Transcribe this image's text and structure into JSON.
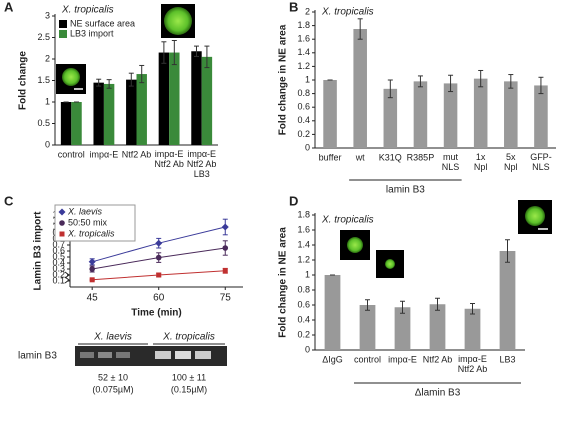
{
  "chart_data": [
    {
      "type": "bar",
      "label": "A",
      "title": "X. tropicalis",
      "ylabel": "Fold change",
      "categories": [
        "control",
        "impα-E",
        "Ntf2 Ab",
        "impα-E\nNtf2 Ab",
        "impα-E\nNtf2 Ab\nLB3"
      ],
      "series": [
        {
          "name": "NE surface area",
          "color": "#000000",
          "values": [
            1.0,
            1.45,
            1.52,
            2.15,
            2.18
          ],
          "errors": [
            0,
            0.08,
            0.15,
            0.25,
            0.12
          ]
        },
        {
          "name": "LB3 import",
          "color": "#3a8a3a",
          "values": [
            1.0,
            1.42,
            1.65,
            2.15,
            2.05
          ],
          "errors": [
            0,
            0.1,
            0.2,
            0.28,
            0.25
          ]
        }
      ],
      "ylim": [
        0,
        3
      ],
      "yticks": [
        0,
        0.5,
        1,
        1.5,
        2,
        2.5,
        3
      ]
    },
    {
      "type": "bar",
      "label": "B",
      "title": "X. tropicalis",
      "ylabel": "Fold change in NE area",
      "categories": [
        "buffer",
        "wt",
        "K31Q",
        "R385P",
        "mut\nNLS",
        "1x\nNpl",
        "5x\nNpl",
        "GFP-\nNLS"
      ],
      "series": [
        {
          "color": "#999999",
          "values": [
            1.0,
            1.75,
            0.87,
            0.98,
            0.95,
            1.02,
            0.98,
            0.92
          ],
          "errors": [
            0,
            0.15,
            0.13,
            0.08,
            0.12,
            0.12,
            0.1,
            0.12
          ]
        }
      ],
      "group_label": "lamin B3",
      "ylim": [
        0,
        2
      ],
      "yticks": [
        0,
        0.2,
        0.4,
        0.6,
        0.8,
        1,
        1.2,
        1.4,
        1.6,
        1.8,
        2
      ]
    },
    {
      "type": "line",
      "label": "C",
      "ylabel": "Lamin B3 import",
      "xlabel": "Time (min)",
      "x": [
        45,
        60,
        75
      ],
      "series": [
        {
          "name": "X. laevis",
          "color": "#3b3b9a",
          "marker": "diamond",
          "values": [
            0.42,
            0.73,
            1.0
          ],
          "errors": [
            0.05,
            0.08,
            0.13
          ]
        },
        {
          "name": "50:50 mix",
          "color": "#4a2a5a",
          "marker": "circle",
          "values": [
            0.3,
            0.49,
            0.65
          ],
          "errors": [
            0.05,
            0.08,
            0.12
          ]
        },
        {
          "name": "X. tropicalis",
          "color": "#c03030",
          "marker": "square",
          "values": [
            0.12,
            0.2,
            0.27
          ],
          "errors": [
            0.01,
            0.03,
            0.04
          ]
        }
      ],
      "xlim": [
        40,
        79
      ],
      "xticks": [
        45,
        60,
        75
      ],
      "ylim": [
        0,
        1.2
      ],
      "yticks": [
        0.1,
        0.2,
        0.3,
        0.4,
        0.5,
        0.6,
        0.7,
        0.8,
        0.9,
        {
          "value": 1.0,
          "label": "1.0"
        },
        1.1,
        1.2
      ]
    },
    {
      "type": "bar",
      "label": "D",
      "title": "X. tropicalis",
      "ylabel": "Fold change in NE area",
      "categories": [
        "ΔIgG",
        "control",
        "impα-E",
        "Ntf2 Ab",
        "impα-E\nNtf2 Ab",
        "LB3"
      ],
      "series": [
        {
          "color": "#999999",
          "values": [
            1.0,
            0.6,
            0.57,
            0.61,
            0.55,
            1.32
          ],
          "errors": [
            0,
            0.07,
            0.08,
            0.08,
            0.07,
            0.15
          ]
        }
      ],
      "group_label": "Δlamin B3",
      "ylim": [
        0,
        1.8
      ],
      "yticks": [
        0,
        0.2,
        0.4,
        0.6,
        0.8,
        1,
        1.2,
        1.4,
        1.6,
        1.8
      ]
    }
  ],
  "blot": {
    "row_label": "lamin B3",
    "columns": [
      {
        "name": "X. laevis",
        "quant": "52 ± 10",
        "conc": "(0.075µM)"
      },
      {
        "name": "X. tropicalis",
        "quant": "100 ± 11",
        "conc": "(0.15µM)"
      }
    ]
  }
}
